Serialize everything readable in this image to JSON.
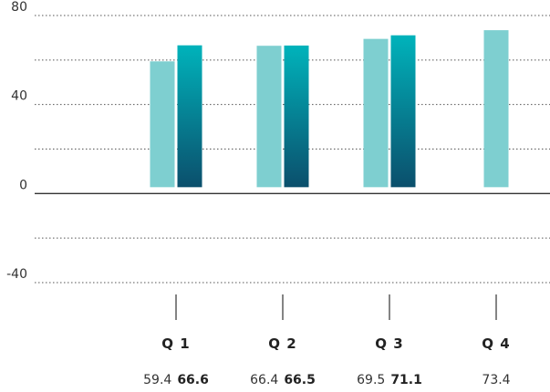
{
  "chart_data": {
    "type": "bar",
    "categories": [
      "Q 1",
      "Q 2",
      "Q 3",
      "Q 4"
    ],
    "series": [
      {
        "values": [
          59.4,
          66.4,
          69.5,
          73.4
        ]
      },
      {
        "values": [
          66.6,
          66.5,
          71.1,
          null
        ]
      }
    ],
    "value_labels": [
      [
        "59.4",
        "66.6"
      ],
      [
        "66.4",
        "66.5"
      ],
      [
        "69.5",
        "71.1"
      ],
      [
        "73.4",
        ""
      ]
    ],
    "ylim": [
      -40,
      80
    ],
    "yticks": [
      "80",
      "40",
      "0",
      "-40"
    ],
    "grid": true,
    "colors": {
      "series_0": "#7ecfd0",
      "series_1_top": "#00b3bb",
      "series_1_bottom": "#0b4f6c",
      "grid": "#555555",
      "axis": "#333333"
    }
  }
}
